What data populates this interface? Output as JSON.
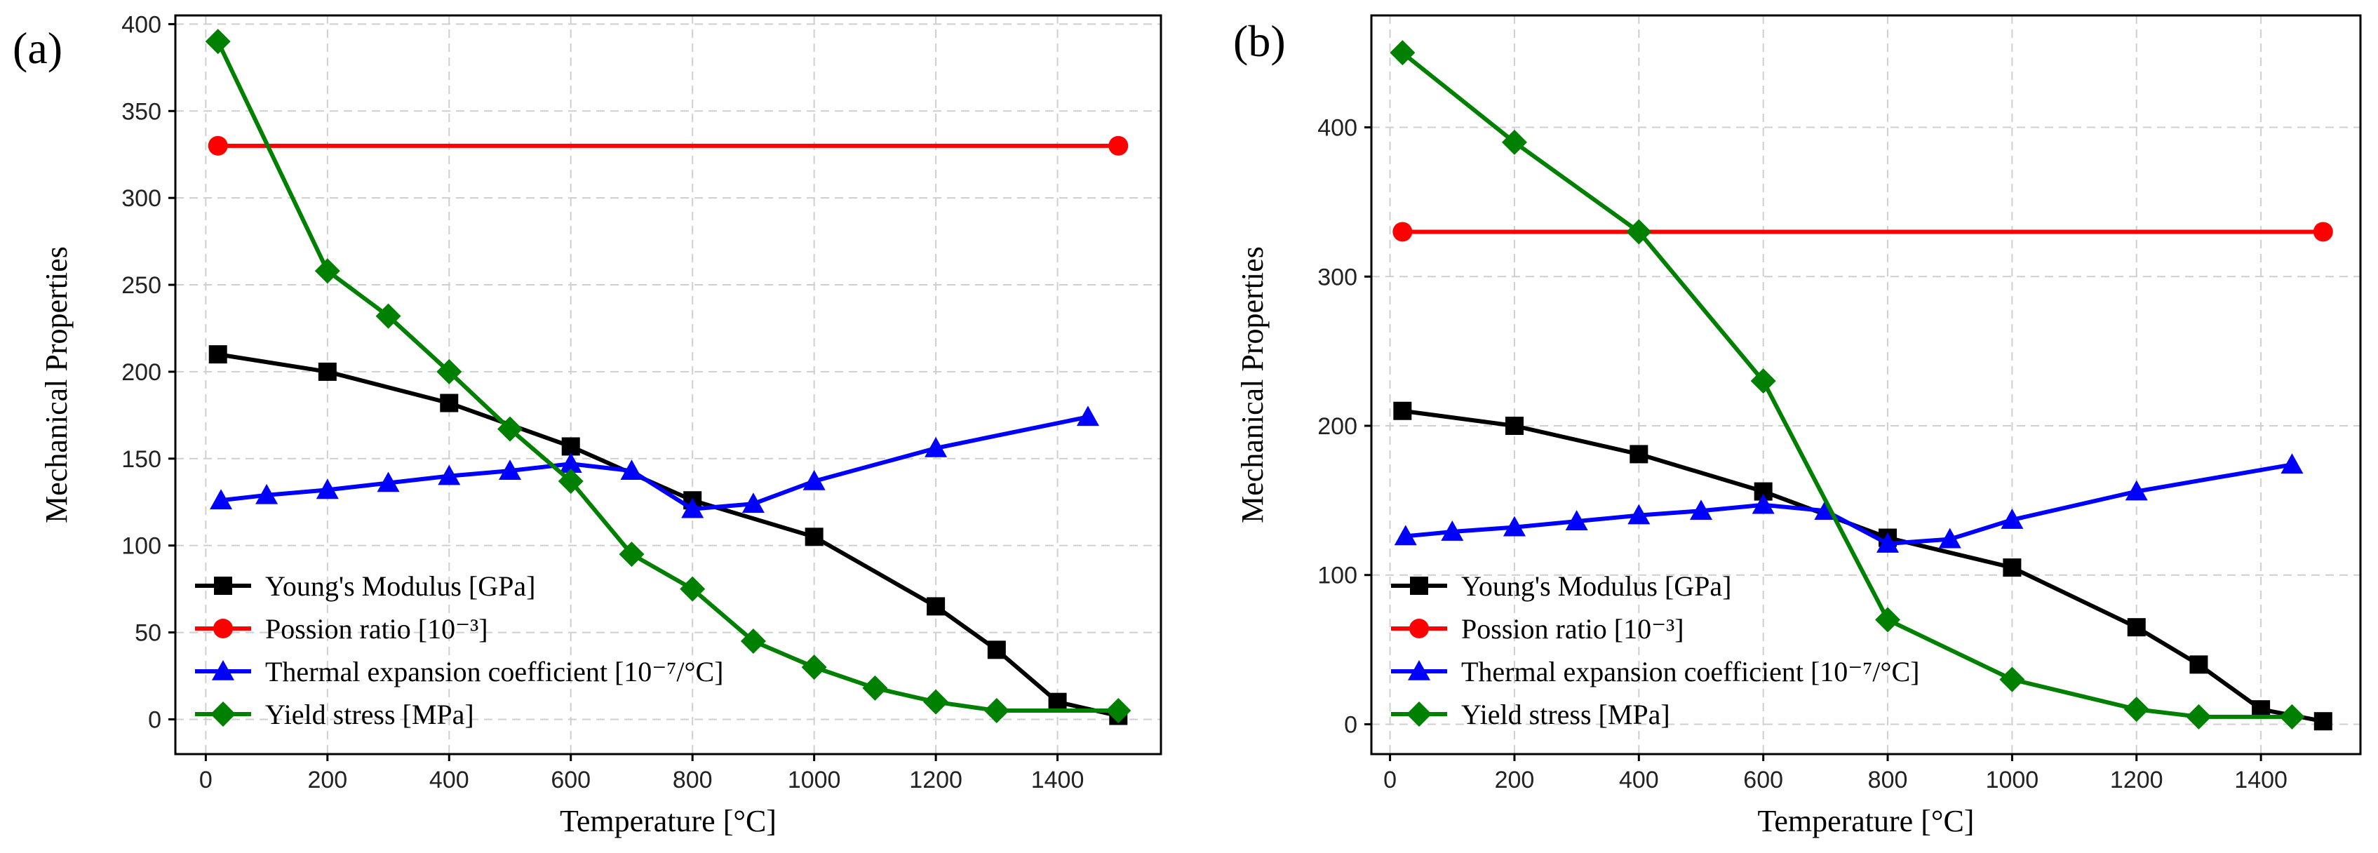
{
  "chart_data": [
    {
      "type": "line",
      "panel_label": "(a)",
      "xlabel": "Temperature [°C]",
      "ylabel": "Mechanical Properties",
      "xlim": [
        -50,
        1570
      ],
      "ylim": [
        -20,
        405
      ],
      "xticks": [
        0,
        200,
        400,
        600,
        800,
        1000,
        1200,
        1400
      ],
      "yticks": [
        0,
        50,
        100,
        150,
        200,
        250,
        300,
        350,
        400
      ],
      "grid": true,
      "legend_position": "bottom-left",
      "series": [
        {
          "name": "Young's Modulus [GPa]",
          "color": "#000000",
          "marker": "square",
          "x": [
            20,
            200,
            400,
            600,
            800,
            1000,
            1200,
            1300,
            1400,
            1500
          ],
          "y": [
            210,
            200,
            182,
            157,
            126,
            105,
            65,
            40,
            10,
            2
          ]
        },
        {
          "name": "Possion ratio [10⁻³]",
          "color": "#ff0000",
          "marker": "circle",
          "x": [
            20,
            1500
          ],
          "y": [
            330,
            330
          ]
        },
        {
          "name": "Thermal expansion coefficient [10⁻⁷/°C]",
          "color": "#0000ff",
          "marker": "triangle",
          "x": [
            25,
            100,
            200,
            300,
            400,
            500,
            600,
            700,
            800,
            900,
            1000,
            1200,
            1450
          ],
          "y": [
            126,
            129,
            132,
            136,
            140,
            143,
            147,
            143,
            121,
            124,
            137,
            156,
            174
          ]
        },
        {
          "name": "Yield stress [MPa]",
          "color": "#008000",
          "marker": "diamond",
          "x": [
            20,
            200,
            300,
            400,
            500,
            600,
            700,
            800,
            900,
            1000,
            1100,
            1200,
            1300,
            1500
          ],
          "y": [
            390,
            258,
            232,
            200,
            167,
            137,
            95,
            75,
            45,
            30,
            18,
            10,
            5,
            5
          ]
        }
      ]
    },
    {
      "type": "line",
      "panel_label": "(b)",
      "xlabel": "Temperature [°C]",
      "ylabel": "Mechanical Properties",
      "xlim": [
        -30,
        1560
      ],
      "ylim": [
        -20,
        475
      ],
      "xticks": [
        0,
        200,
        400,
        600,
        800,
        1000,
        1200,
        1400
      ],
      "yticks": [
        0,
        100,
        200,
        300,
        400
      ],
      "grid": true,
      "legend_position": "bottom-left",
      "series": [
        {
          "name": "Young's Modulus [GPa]",
          "color": "#000000",
          "marker": "square",
          "x": [
            20,
            200,
            400,
            600,
            800,
            1000,
            1200,
            1300,
            1400,
            1500
          ],
          "y": [
            210,
            200,
            181,
            156,
            125,
            105,
            65,
            40,
            10,
            2
          ]
        },
        {
          "name": "Possion ratio [10⁻³]",
          "color": "#ff0000",
          "marker": "circle",
          "x": [
            20,
            1500
          ],
          "y": [
            330,
            330
          ]
        },
        {
          "name": "Thermal expansion coefficient [10⁻⁷/°C]",
          "color": "#0000ff",
          "marker": "triangle",
          "x": [
            25,
            100,
            200,
            300,
            400,
            500,
            600,
            700,
            800,
            900,
            1000,
            1200,
            1450
          ],
          "y": [
            126,
            129,
            132,
            136,
            140,
            143,
            147,
            143,
            121,
            124,
            137,
            156,
            174
          ]
        },
        {
          "name": "Yield stress [MPa]",
          "color": "#008000",
          "marker": "diamond",
          "x": [
            20,
            200,
            400,
            600,
            800,
            1000,
            1200,
            1300,
            1450
          ],
          "y": [
            450,
            390,
            330,
            230,
            70,
            30,
            10,
            5,
            5
          ]
        }
      ]
    }
  ]
}
